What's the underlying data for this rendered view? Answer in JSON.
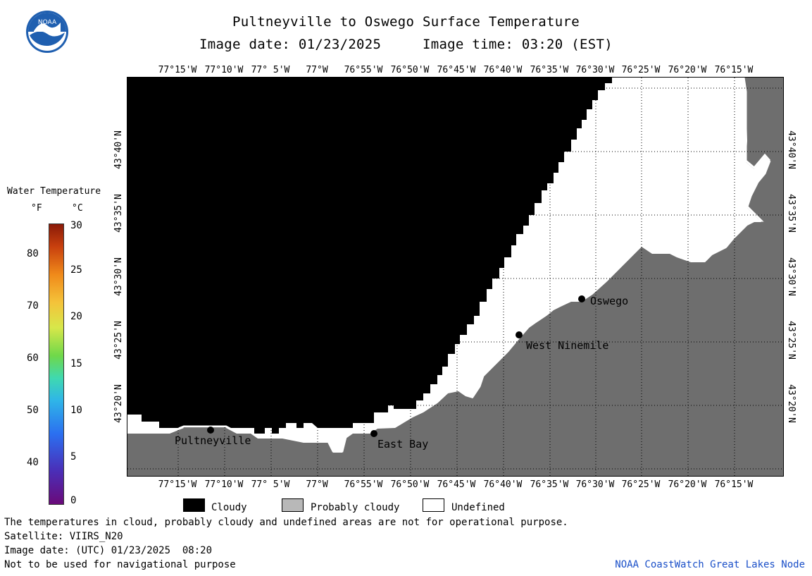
{
  "header": {
    "title": "Pultneyville to Oswego Surface Temperature",
    "subtitle": "Image date: 01/23/2025     Image time: 03:20 (EST)"
  },
  "logo": {
    "text": "NOAA",
    "icon": "noaa-logo-icon"
  },
  "map": {
    "lon_labels": [
      "77°15'W",
      "77°10'W",
      "77° 5'W",
      "77°W",
      "76°55'W",
      "76°50'W",
      "76°45'W",
      "76°40'W",
      "76°35'W",
      "76°30'W",
      "76°25'W",
      "76°20'W",
      "76°15'W"
    ],
    "lat_labels": [
      "43°40'N",
      "43°35'N",
      "43°30'N",
      "43°25'N",
      "43°20'N"
    ],
    "places": [
      {
        "name": "Pultneyville"
      },
      {
        "name": "East Bay"
      },
      {
        "name": "West Ninemile"
      },
      {
        "name": "Oswego"
      }
    ],
    "colors": {
      "cloudy": "#000000",
      "probably_cloudy": "#6e6e6e",
      "undefined": "#ffffff"
    }
  },
  "colorbar": {
    "title": "Water Temperature",
    "unit_f": "°F",
    "unit_c": "°C",
    "f_ticks": [
      "80",
      "70",
      "60",
      "50",
      "40"
    ],
    "c_ticks": [
      "30",
      "25",
      "20",
      "15",
      "10",
      "5",
      "0"
    ]
  },
  "legend": {
    "cloudy": "Cloudy",
    "probably_cloudy": "Probably cloudy",
    "undefined": "Undefined"
  },
  "footer": {
    "note": "The temperatures in cloud, probably cloudy and undefined areas are not for operational purpose.",
    "satellite": "Satellite: VIIRS_N20",
    "utc_date": "Image date: (UTC) 01/23/2025  08:20",
    "nav_warning": "Not to be used for navigational purpose",
    "credit": "NOAA CoastWatch Great Lakes Node"
  }
}
